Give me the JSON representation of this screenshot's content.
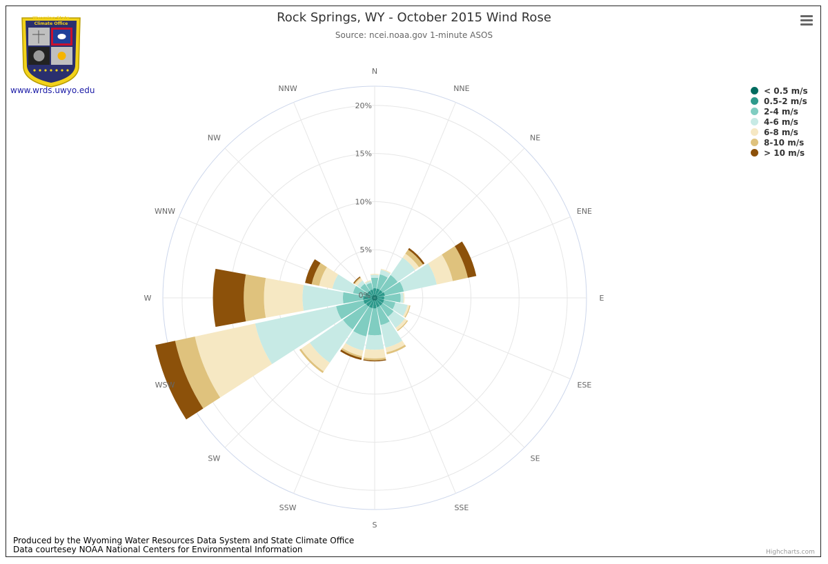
{
  "header": {
    "title": "Rock Springs, WY - October 2015 Wind Rose",
    "subtitle": "Source: ncei.noaa.gov 1-minute ASOS"
  },
  "logo": {
    "text_line1": "Wyoming State",
    "text_line2": "Climate Office",
    "link": "www.wrds.uwyo.edu"
  },
  "footer": {
    "line1": "Produced by the Wyoming Water Resources Data System and State Climate Office",
    "line2": "Data courtesey NOAA National Centers for Environmental Information"
  },
  "credits": "Highcharts.com",
  "menu_icon": "hamburger-menu-icon",
  "chart_data": {
    "type": "windrose",
    "directions": [
      "N",
      "NNE",
      "NE",
      "ENE",
      "E",
      "ESE",
      "SE",
      "SSE",
      "S",
      "SSW",
      "SW",
      "WSW",
      "W",
      "WNW",
      "NW",
      "NNW"
    ],
    "radial_ticks": [
      "0%",
      "5%",
      "10%",
      "15%",
      "20%"
    ],
    "radial_max": 22,
    "legend_placement": "top-right",
    "series": [
      {
        "name": "< 0.5 m/s",
        "color": "#006b5f",
        "values": [
          0.3,
          0.3,
          0.3,
          0.3,
          0.3,
          0.3,
          0.3,
          0.3,
          0.3,
          0.3,
          0.3,
          0.3,
          0.3,
          0.3,
          0.3,
          0.3
        ]
      },
      {
        "name": "0.5-2 m/s",
        "color": "#2e9a8c",
        "values": [
          0.7,
          0.7,
          0.7,
          0.8,
          0.7,
          0.7,
          0.7,
          0.7,
          0.8,
          0.8,
          0.8,
          0.9,
          0.9,
          0.7,
          0.6,
          0.6
        ]
      },
      {
        "name": "2-4 m/s",
        "color": "#80cdc1",
        "values": [
          1.1,
          1.5,
          1.9,
          2.0,
          1.7,
          1.2,
          1.4,
          1.9,
          2.8,
          3.0,
          2.9,
          2.9,
          2.1,
          1.3,
          0.9,
          0.7
        ]
      },
      {
        "name": "4-6 m/s",
        "color": "#c7eae5",
        "values": [
          0.3,
          0.5,
          2.2,
          3.5,
          0.3,
          1.3,
          1.4,
          2.4,
          1.5,
          1.5,
          4.2,
          8.6,
          4.2,
          2.2,
          0.4,
          0.2
        ]
      },
      {
        "name": "6-8 m/s",
        "color": "#f6e8c3",
        "values": [
          0.1,
          0.1,
          0.5,
          1.7,
          0.1,
          0.2,
          0.3,
          0.5,
          0.9,
          0.6,
          1.1,
          6.4,
          4.0,
          1.4,
          0.3,
          0.1
        ]
      },
      {
        "name": "8-10 m/s",
        "color": "#dfc27d",
        "values": [
          0.0,
          0.0,
          0.5,
          1.6,
          0.0,
          0.1,
          0.1,
          0.2,
          0.2,
          0.2,
          0.2,
          2.1,
          2.1,
          0.8,
          0.1,
          0.0
        ]
      },
      {
        "name": "> 10 m/s",
        "color": "#8c510a",
        "values": [
          0.0,
          0.0,
          0.2,
          0.9,
          0.0,
          0.0,
          0.0,
          0.0,
          0.1,
          0.2,
          0.0,
          2.1,
          3.2,
          0.7,
          0.1,
          0.0
        ]
      }
    ]
  }
}
